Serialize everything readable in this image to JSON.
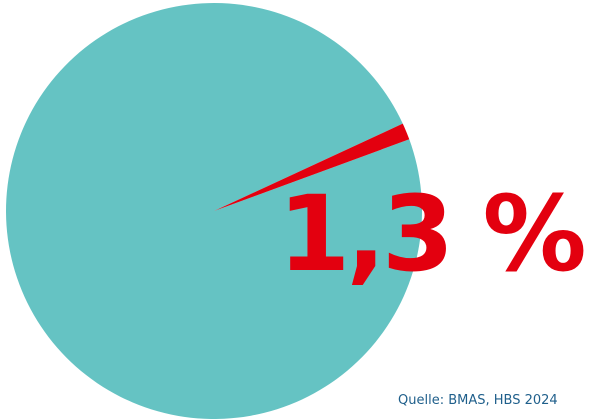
{
  "chart_data": {
    "type": "pie",
    "categories": [
      "",
      ""
    ],
    "values": [
      98.7,
      1.3
    ],
    "colors": [
      "#65c3c3",
      "#e3000f"
    ],
    "data_label": "1,3 %"
  },
  "source": "Quelle: BMAS, HBS 2024",
  "colors": {
    "main": "#65c3c3",
    "accent": "#e3000f",
    "source_text": "#1f5f8b"
  }
}
